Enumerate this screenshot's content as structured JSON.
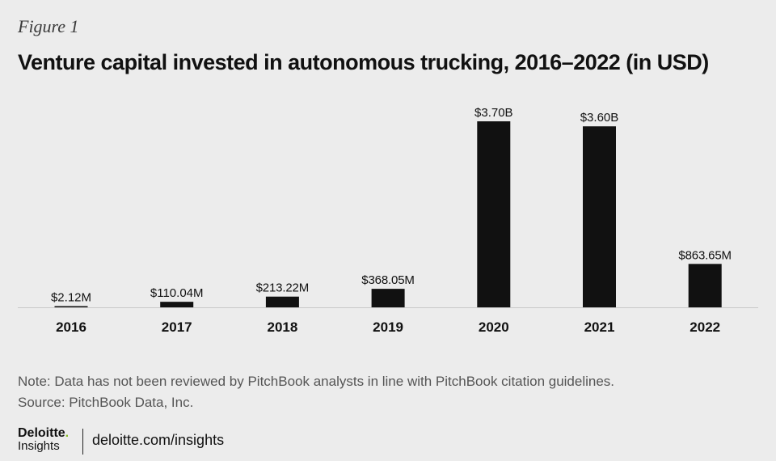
{
  "figure_label": "Figure 1",
  "title": "Venture capital invested in autonomous trucking, 2016–2022  (in USD)",
  "chart_data": {
    "type": "bar",
    "categories": [
      "2016",
      "2017",
      "2018",
      "2019",
      "2020",
      "2021",
      "2022"
    ],
    "values": [
      2.12,
      110.04,
      213.22,
      368.05,
      3700,
      3600,
      863.65
    ],
    "unit": "USD millions",
    "data_labels": [
      "$2.12M",
      "$110.04M",
      "$213.22M",
      "$368.05M",
      "$3.70B",
      "$3.60B",
      "$863.65M"
    ],
    "ylim": [
      0,
      3700
    ],
    "bar_color": "#111111",
    "grid": false
  },
  "note": "Note: Data has not been reviewed by PitchBook analysts in line with PitchBook citation guidelines.",
  "source": "Source: PitchBook Data, Inc.",
  "brand": {
    "name": "Deloitte",
    "dot": ".",
    "sub": "Insights",
    "accent_color": "#86bc25"
  },
  "website": "deloitte.com/insights"
}
